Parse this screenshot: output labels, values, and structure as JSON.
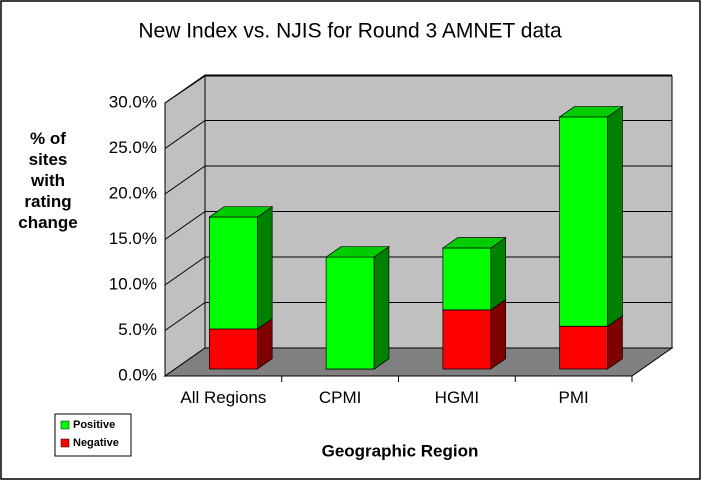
{
  "chart_data": {
    "type": "bar3d_stacked",
    "title": "New Index vs. NJIS for Round 3 AMNET data",
    "x_label": "Geographic Region",
    "y_label": "% of sites with rating change",
    "categories": [
      "All Regions",
      "CPMI",
      "HGMI",
      "PMI"
    ],
    "series": [
      {
        "name": "Positive",
        "color": "#00ff00",
        "values": [
          12.3,
          12.3,
          6.8,
          23.0
        ]
      },
      {
        "name": "Negative",
        "color": "#ff0000",
        "values": [
          4.4,
          0,
          6.5,
          4.7
        ]
      }
    ],
    "ylim": [
      0,
      30
    ],
    "yticks": [
      {
        "value": 0,
        "label": "0.0%"
      },
      {
        "value": 5,
        "label": "5.0%"
      },
      {
        "value": 10,
        "label": "10.0%"
      },
      {
        "value": 15,
        "label": "15.0%"
      },
      {
        "value": 20,
        "label": "20.0%"
      },
      {
        "value": 25,
        "label": "25.0%"
      },
      {
        "value": 30,
        "label": "30.0%"
      }
    ],
    "grid": true,
    "legend_position": "lower left"
  }
}
